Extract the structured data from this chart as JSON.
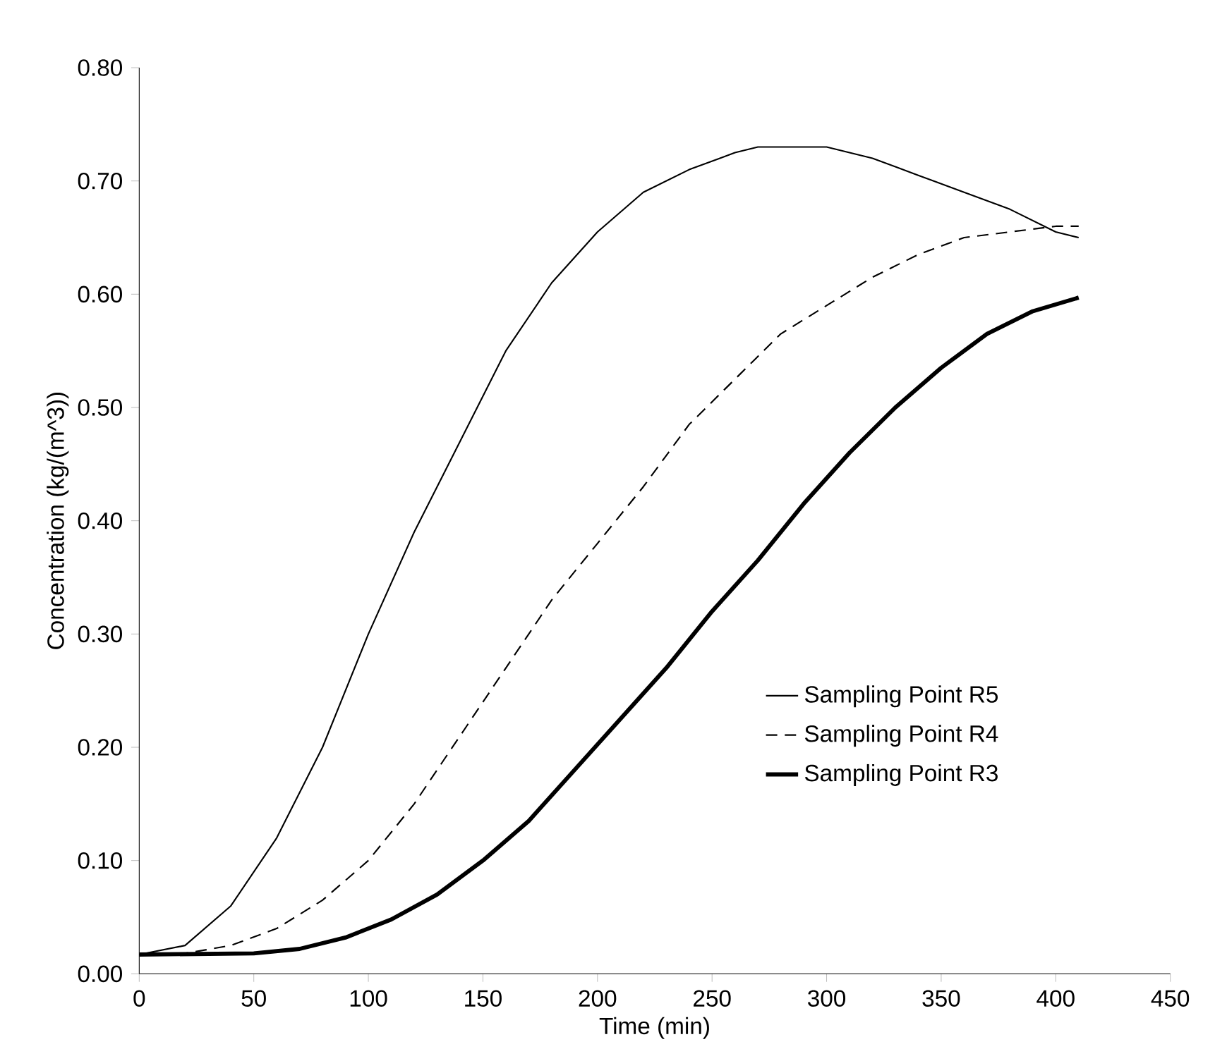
{
  "chart_data": {
    "type": "line",
    "xlabel": "Time (min)",
    "ylabel": "Concentration (kg/(m^3))",
    "xlim": [
      0,
      450
    ],
    "ylim": [
      0,
      0.8
    ],
    "xticks": [
      0,
      50,
      100,
      150,
      200,
      250,
      300,
      350,
      400,
      450
    ],
    "yticks": [
      {
        "value": 0,
        "label": "0.00"
      },
      {
        "value": 0.1,
        "label": "0.10"
      },
      {
        "value": 0.2,
        "label": "0.20"
      },
      {
        "value": 0.3,
        "label": "0.30"
      },
      {
        "value": 0.4,
        "label": "0.40"
      },
      {
        "value": 0.5,
        "label": "0.50"
      },
      {
        "value": 0.6,
        "label": "0.60"
      },
      {
        "value": 0.7,
        "label": "0.70"
      },
      {
        "value": 0.8,
        "label": "0.80"
      }
    ],
    "legend": "right",
    "grid": false,
    "marker": "none",
    "series": [
      {
        "name": "Sampling Point R5",
        "color": "#000000",
        "line_style": "solid",
        "x": [
          0,
          20,
          40,
          60,
          80,
          100,
          120,
          140,
          160,
          180,
          200,
          220,
          240,
          260,
          270,
          300,
          320,
          340,
          360,
          380,
          400,
          410
        ],
        "values": [
          0.017,
          0.025,
          0.06,
          0.12,
          0.2,
          0.3,
          0.39,
          0.47,
          0.55,
          0.61,
          0.655,
          0.69,
          0.71,
          0.725,
          0.73,
          0.73,
          0.72,
          0.705,
          0.69,
          0.675,
          0.655,
          0.65
        ]
      },
      {
        "name": "Sampling Point R4",
        "color": "#000000",
        "line_style": "dashed",
        "x": [
          0,
          20,
          40,
          60,
          80,
          100,
          120,
          140,
          160,
          180,
          200,
          220,
          240,
          260,
          280,
          300,
          320,
          340,
          360,
          380,
          400,
          410
        ],
        "values": [
          0.017,
          0.018,
          0.025,
          0.04,
          0.065,
          0.1,
          0.15,
          0.21,
          0.27,
          0.33,
          0.38,
          0.43,
          0.485,
          0.525,
          0.565,
          0.59,
          0.615,
          0.635,
          0.65,
          0.655,
          0.66,
          0.66
        ]
      },
      {
        "name": "Sampling Point R3",
        "color": "#000000",
        "line_style": "solid",
        "x": [
          0,
          50,
          70,
          90,
          110,
          130,
          150,
          170,
          190,
          210,
          230,
          250,
          270,
          290,
          310,
          330,
          350,
          370,
          390,
          410
        ],
        "values": [
          0.017,
          0.018,
          0.022,
          0.032,
          0.048,
          0.07,
          0.1,
          0.135,
          0.18,
          0.225,
          0.27,
          0.32,
          0.365,
          0.415,
          0.46,
          0.5,
          0.535,
          0.565,
          0.585,
          0.597
        ]
      }
    ]
  }
}
